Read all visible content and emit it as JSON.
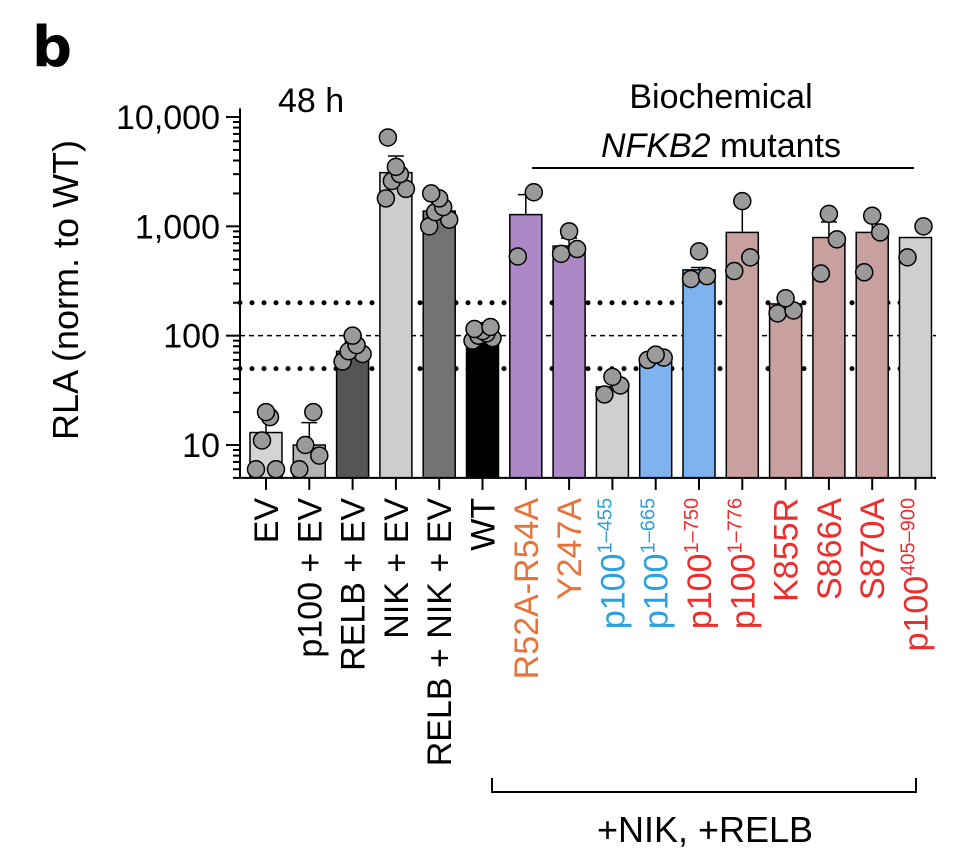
{
  "panel_label": "b",
  "chart_data": {
    "type": "bar",
    "scale": "log",
    "time_label": "48 h",
    "ylabel": "RLA (norm. to WT)",
    "ylim": [
      5,
      12000
    ],
    "yticks": [
      {
        "value": 10,
        "label": "10"
      },
      {
        "value": 100,
        "label": "100"
      },
      {
        "value": 1000,
        "label": "1,000"
      },
      {
        "value": 10000,
        "label": "10,000"
      }
    ],
    "reference_lines": [
      {
        "value": 200,
        "style": "dotted"
      },
      {
        "value": 100,
        "style": "dashed"
      },
      {
        "value": 50,
        "style": "dotted"
      }
    ],
    "group_labels": {
      "top_line1": "Biochemical",
      "top_gene": "NFKB2",
      "top_rest": " mutants",
      "bottom": "+NIK, +RELB"
    },
    "categories": [
      {
        "label": "EV",
        "sup": "",
        "label_color": "#000000",
        "bar_color": "#d4d4d4",
        "value": 13,
        "err": 18,
        "points": [
          6,
          6,
          11,
          18,
          20
        ]
      },
      {
        "label": "p100 + EV",
        "sup": "",
        "label_color": "#000000",
        "bar_color": "#b3b3b3",
        "value": 10,
        "err": 16,
        "points": [
          6,
          8,
          10,
          20
        ]
      },
      {
        "label": "RELB + EV",
        "sup": "",
        "label_color": "#000000",
        "bar_color": "#555555",
        "value": 72,
        "err": 88,
        "points": [
          58,
          68,
          72,
          82,
          100
        ]
      },
      {
        "label": "NIK + EV",
        "sup": "",
        "label_color": "#000000",
        "bar_color": "#cdcdcd",
        "value": 3100,
        "err": 4400,
        "points": [
          1800,
          2200,
          2600,
          3000,
          3500,
          6500
        ]
      },
      {
        "label": "RELB + NIK + EV",
        "sup": "",
        "label_color": "#000000",
        "bar_color": "#737373",
        "value": 1380,
        "err": 1680,
        "points": [
          1000,
          1150,
          1350,
          1500,
          1800,
          2000
        ]
      },
      {
        "label": "WT",
        "sup": "",
        "label_color": "#000000",
        "bar_color": "#000000",
        "value": 100,
        "err": 110,
        "points": [
          90,
          95,
          100,
          105,
          110,
          115,
          120
        ]
      },
      {
        "label": "R52A-R54A",
        "sup": "",
        "label_color": "#e8733a",
        "bar_color": "#ad88c6",
        "value": 1280,
        "err": 1950,
        "points": [
          530,
          2050
        ]
      },
      {
        "label": "Y247A",
        "sup": "",
        "label_color": "#e8733a",
        "bar_color": "#ad88c6",
        "value": 660,
        "err": 780,
        "points": [
          560,
          620,
          900
        ]
      },
      {
        "label": "p100",
        "sup": "1–455",
        "label_color": "#2aa2de",
        "bar_color": "#cfcfcf",
        "value": 34,
        "err": 41,
        "points": [
          29,
          35,
          42
        ]
      },
      {
        "label": "p100",
        "sup": "1–665",
        "label_color": "#2aa2de",
        "bar_color": "#7fb3ef",
        "value": 62,
        "err": 68,
        "points": [
          60,
          63,
          67
        ]
      },
      {
        "label": "p100",
        "sup": "1–750",
        "label_color": "#ee2d2d",
        "bar_color": "#7fb3ef",
        "value": 400,
        "err": 420,
        "points": [
          330,
          350,
          590
        ]
      },
      {
        "label": "p100",
        "sup": "1–776",
        "label_color": "#ee2d2d",
        "bar_color": "#c9a0a0",
        "value": 880,
        "err": 1600,
        "points": [
          390,
          520,
          1700
        ]
      },
      {
        "label": "K855R",
        "sup": "",
        "label_color": "#ee2d2d",
        "bar_color": "#c9a0a0",
        "value": 195,
        "err": 215,
        "points": [
          160,
          170,
          220
        ]
      },
      {
        "label": "S866A",
        "sup": "",
        "label_color": "#ee2d2d",
        "bar_color": "#c9a0a0",
        "value": 790,
        "err": 1100,
        "points": [
          370,
          760,
          1300
        ]
      },
      {
        "label": "S870A",
        "sup": "",
        "label_color": "#ee2d2d",
        "bar_color": "#c9a0a0",
        "value": 880,
        "err": 1200,
        "points": [
          380,
          880,
          1250
        ]
      },
      {
        "label": "p100",
        "sup": "405–900",
        "label_color": "#ee2d2d",
        "bar_color": "#cfcfcf",
        "value": 790,
        "err": 0,
        "points": [
          520,
          1000
        ]
      }
    ]
  }
}
